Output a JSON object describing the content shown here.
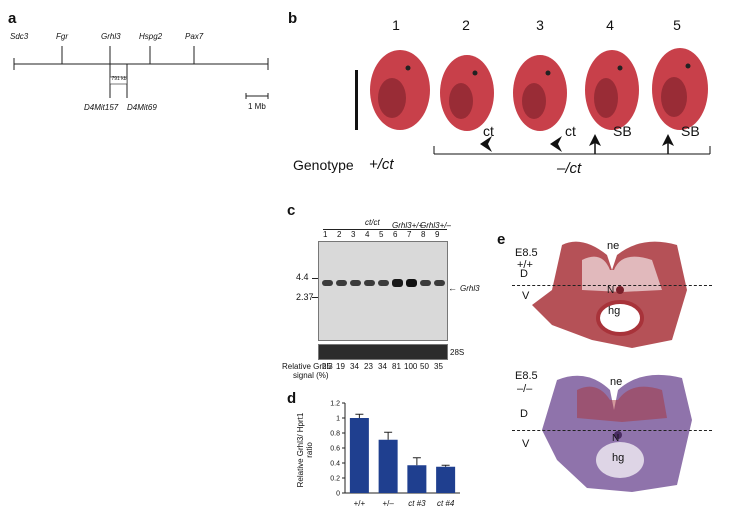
{
  "panels": {
    "a": {
      "label": "a",
      "genes": [
        "Sdc3",
        "Fgr",
        "Grhl3",
        "Hspg2",
        "Pax7"
      ],
      "markers": [
        "D4Mit157",
        "D4Mit69"
      ],
      "interval": "791 kb",
      "scale": "1 Mb"
    },
    "b": {
      "label": "b",
      "numbers": [
        "1",
        "2",
        "3",
        "4",
        "5"
      ],
      "phenotypes": [
        "ct",
        "ct",
        "SB",
        "SB"
      ],
      "genotype_label": "Genotype",
      "genotype_wt": "+/ct",
      "genotype_mut": "–/ct"
    },
    "c": {
      "label": "c",
      "group_ctct": "ct/ct",
      "group_wt": "Grhl3+/+",
      "group_het": "Grhl3+/–",
      "lanes": [
        "1",
        "2",
        "3",
        "4",
        "5",
        "6",
        "7",
        "8",
        "9"
      ],
      "size_44": "4.4",
      "size_237": "2.37",
      "band_label": "Grhl3",
      "rrna_label": "28S",
      "signal_label_1": "Relative Grhl3",
      "signal_label_2": "signal (%)",
      "signals": [
        "25",
        "19",
        "34",
        "23",
        "34",
        "81",
        "100",
        "50",
        "35"
      ]
    },
    "d": {
      "label": "d",
      "ylabel": "Relative Grhl3/ Hprt1 ratio"
    },
    "e": {
      "label": "e",
      "top_stage": "E8.5",
      "top_genotype": "+/+",
      "bottom_stage": "E8.5",
      "bottom_genotype": "–/–",
      "ne": "ne",
      "d": "D",
      "v": "V",
      "n": "N",
      "hg": "hg"
    }
  },
  "chart_data": {
    "type": "bar",
    "categories": [
      "+/+",
      "+/–",
      "ct #3",
      "ct #4"
    ],
    "values": [
      1.0,
      0.71,
      0.37,
      0.35
    ],
    "errors": [
      0.05,
      0.1,
      0.1,
      0.02
    ],
    "ylabel": "Relative Grhl3/ Hprt1 ratio",
    "ylim": [
      0,
      1.2
    ],
    "yticks": [
      "0",
      "0.2",
      "0.4",
      "0.6",
      "0.8",
      "1",
      "1.2"
    ],
    "bar_color": "#1f3f8f"
  },
  "colors": {
    "embryo": "#c8404a",
    "embryo_dark": "#7a1f2a",
    "stain_red": "#a8333a",
    "stain_purple": "#7b5a9c",
    "bar": "#1f3f8f"
  }
}
